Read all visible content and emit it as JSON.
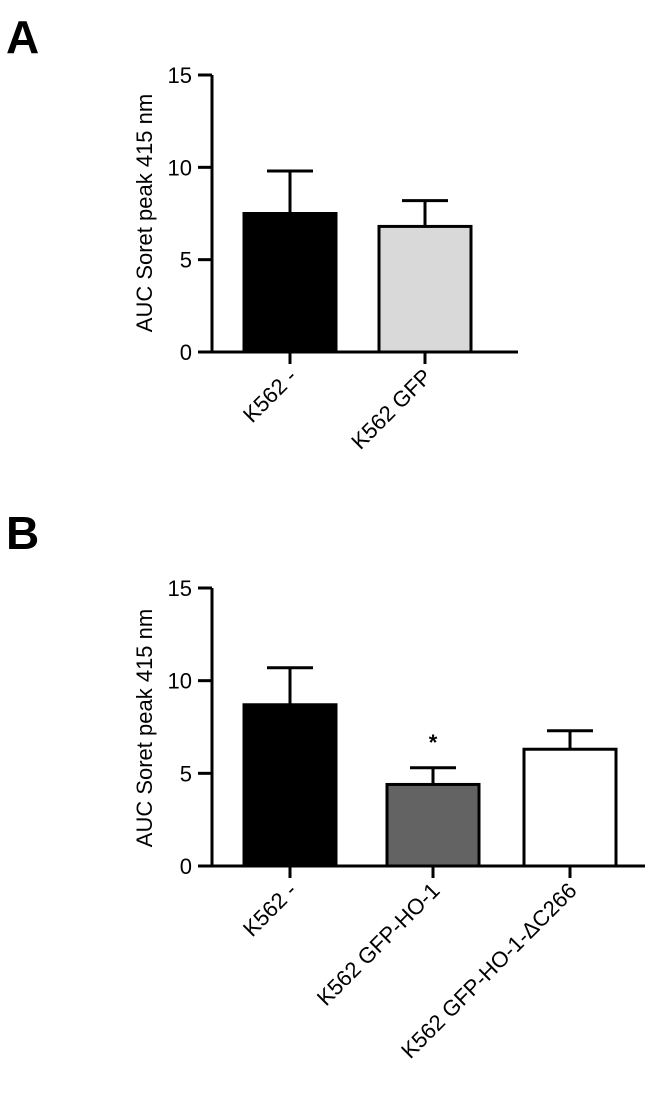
{
  "chart_data": [
    {
      "panel": "A",
      "type": "bar",
      "ylabel": "AUC Soret peak 415 nm",
      "xlabel": "",
      "ylim": [
        0,
        15
      ],
      "yticks": [
        "0",
        "5",
        "10",
        "15"
      ],
      "categories": [
        "K562 -",
        "K562 GFP"
      ],
      "values": [
        7.5,
        6.8
      ],
      "errors": [
        2.3,
        1.4
      ],
      "colors": [
        "#000000",
        "#d9d9d9"
      ],
      "annotations": [
        "",
        ""
      ]
    },
    {
      "panel": "B",
      "type": "bar",
      "ylabel": "AUC Soret peak 415 nm",
      "xlabel": "",
      "ylim": [
        0,
        15
      ],
      "yticks": [
        "0",
        "5",
        "10",
        "15"
      ],
      "categories": [
        "K562 -",
        "K562 GFP-HO-1",
        "K562 GFP-HO-1-ΔC266"
      ],
      "values": [
        8.7,
        4.4,
        6.3
      ],
      "errors": [
        2.0,
        0.9,
        1.0
      ],
      "colors": [
        "#000000",
        "#636363",
        "#ffffff"
      ],
      "annotations": [
        "",
        "*",
        ""
      ]
    }
  ]
}
